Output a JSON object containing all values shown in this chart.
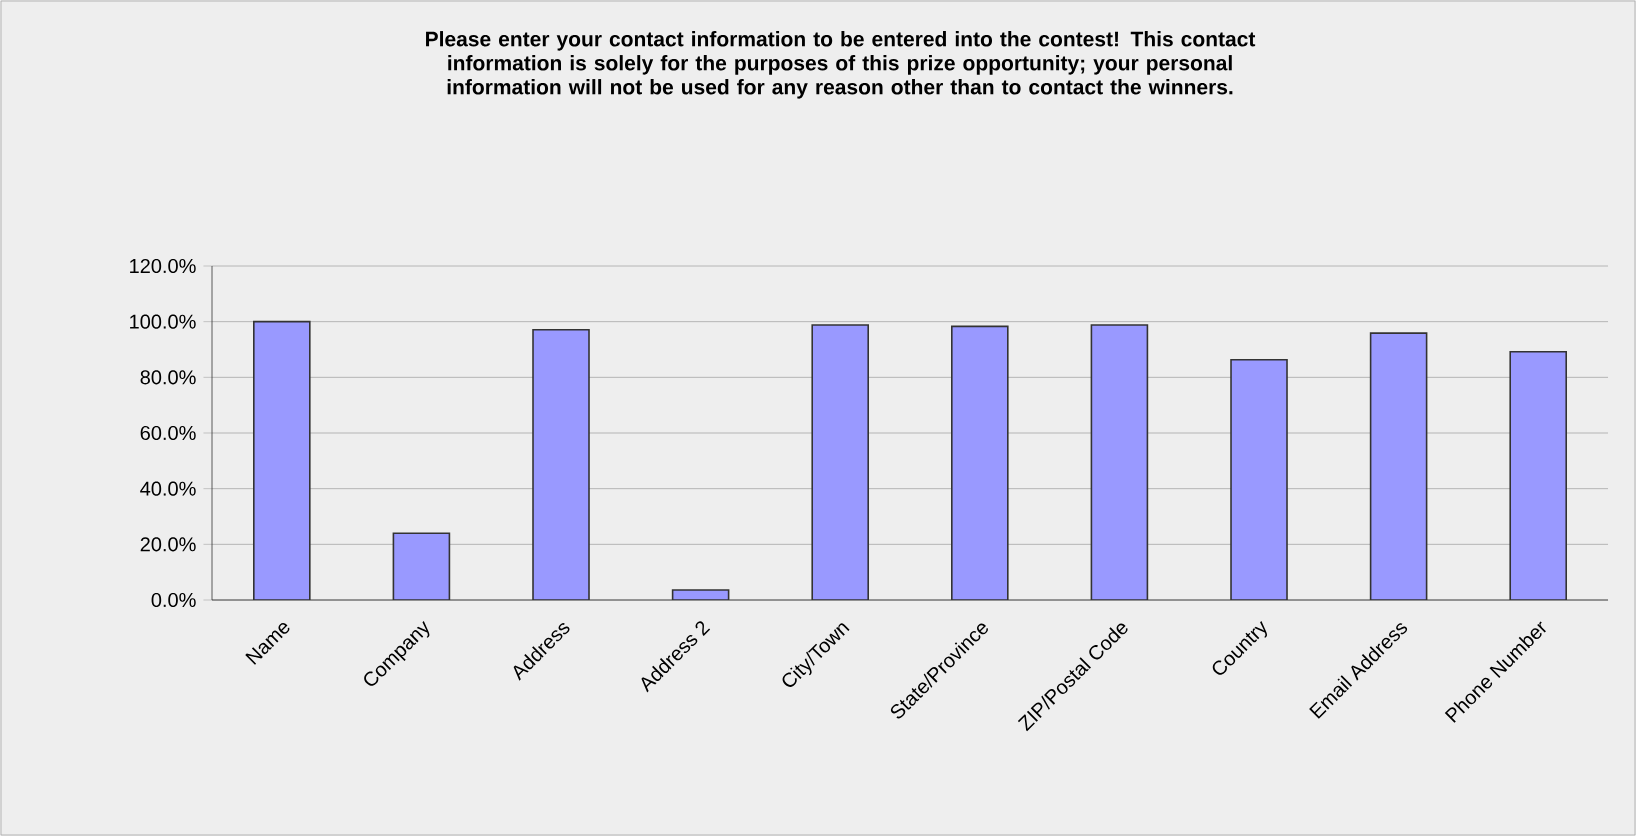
{
  "chart_data": {
    "type": "bar",
    "title": "Please enter your contact information to be entered into the contest! This contact information is solely for the purposes of this prize opportunity; your personal information will not be used for any reason other than to contact the winners.",
    "categories": [
      "Name",
      "Company",
      "Address",
      "Address 2",
      "City/Town",
      "State/Province",
      "ZIP/Postal Code",
      "Country",
      "Email Address",
      "Phone Number"
    ],
    "values": [
      100,
      24,
      97.1,
      3.6,
      98.8,
      98.3,
      98.8,
      86.3,
      95.9,
      89.2
    ],
    "color": "#9999ff",
    "ylim": [
      0,
      120
    ],
    "yticks": [
      {
        "value": 0,
        "label": "0.0%"
      },
      {
        "value": 20,
        "label": "20.0%"
      },
      {
        "value": 40,
        "label": "40.0%"
      },
      {
        "value": 60,
        "label": "60.0%"
      },
      {
        "value": 80,
        "label": "80.0%"
      },
      {
        "value": 100,
        "label": "100.0%"
      },
      {
        "value": 120,
        "label": "120.0%"
      }
    ],
    "grid": "y"
  }
}
